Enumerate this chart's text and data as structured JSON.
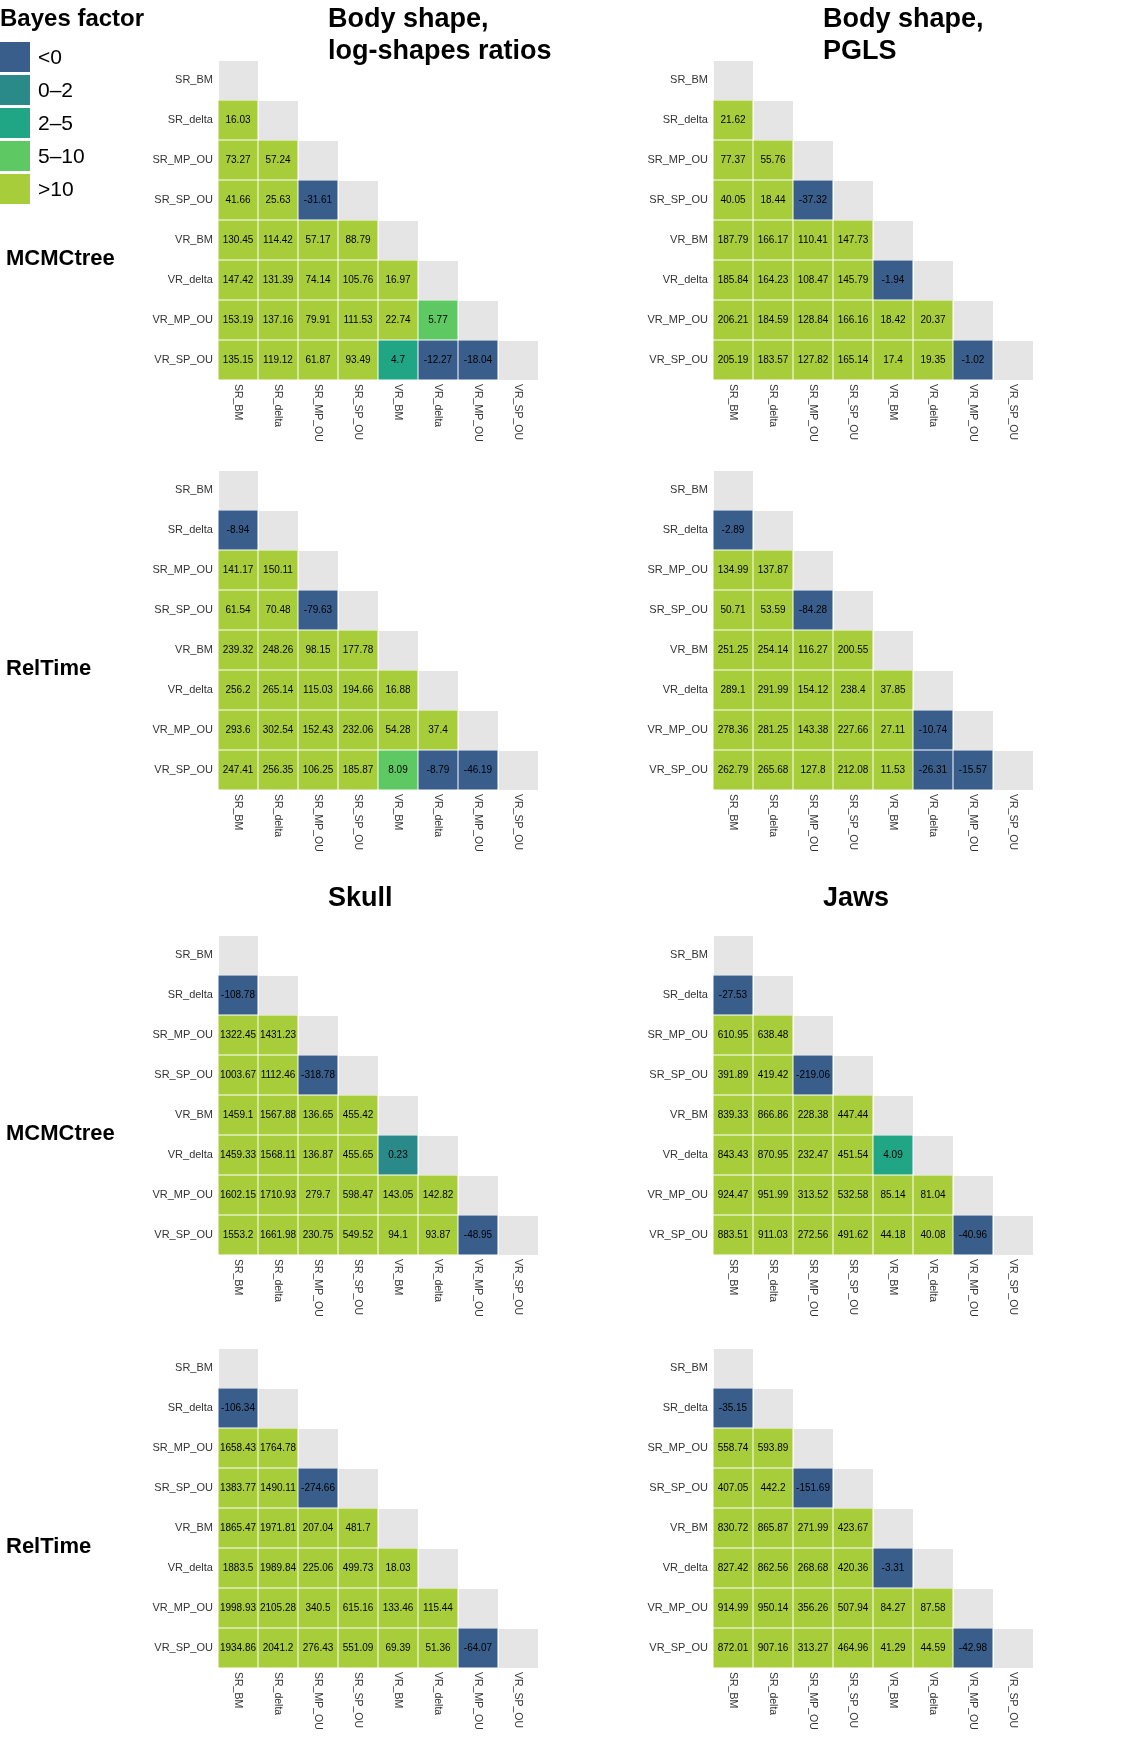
{
  "chart_data": [
    {
      "type": "heatmap",
      "title": "Body shape,\nlog-shapes ratios",
      "ylabel": "MCMCtree",
      "data_labels": true,
      "categories": [
        "SR_BM",
        "SR_delta",
        "SR_MP_OU",
        "SR_SP_OU",
        "VR_BM",
        "VR_delta",
        "VR_MP_OU",
        "VR_SP_OU"
      ],
      "y_categories": [
        "SR_BM",
        "SR_delta",
        "SR_MP_OU",
        "SR_SP_OU",
        "VR_BM",
        "VR_delta",
        "VR_MP_OU",
        "VR_SP_OU"
      ],
      "cells": [
        [
          null,
          null,
          null,
          null,
          null,
          null,
          null,
          null
        ],
        [
          16.03,
          null,
          null,
          null,
          null,
          null,
          null,
          null
        ],
        [
          73.27,
          57.24,
          null,
          null,
          null,
          null,
          null,
          null
        ],
        [
          41.66,
          25.63,
          -31.61,
          null,
          null,
          null,
          null,
          null
        ],
        [
          130.45,
          114.42,
          57.17,
          88.79,
          null,
          null,
          null,
          null
        ],
        [
          147.42,
          131.39,
          74.14,
          105.76,
          16.97,
          null,
          null,
          null
        ],
        [
          153.19,
          137.16,
          79.91,
          111.53,
          22.74,
          5.77,
          null,
          null
        ],
        [
          135.15,
          119.12,
          61.87,
          93.49,
          4.7,
          -12.27,
          -18.04,
          null
        ]
      ],
      "colors": [
        [
          "#e5e5e5",
          null,
          null,
          null,
          null,
          null,
          null,
          null
        ],
        [
          "#a8cd3a",
          "#e5e5e5",
          null,
          null,
          null,
          null,
          null,
          null
        ],
        [
          "#a8cd3a",
          "#a8cd3a",
          "#e5e5e5",
          null,
          null,
          null,
          null,
          null
        ],
        [
          "#a8cd3a",
          "#a8cd3a",
          "#3a5e8c",
          "#e5e5e5",
          null,
          null,
          null,
          null
        ],
        [
          "#a8cd3a",
          "#a8cd3a",
          "#a8cd3a",
          "#a8cd3a",
          "#e5e5e5",
          null,
          null,
          null
        ],
        [
          "#a8cd3a",
          "#a8cd3a",
          "#a8cd3a",
          "#a8cd3a",
          "#a8cd3a",
          "#e5e5e5",
          null,
          null
        ],
        [
          "#a8cd3a",
          "#a8cd3a",
          "#a8cd3a",
          "#a8cd3a",
          "#a8cd3a",
          "#5ec962",
          "#e5e5e5",
          null
        ],
        [
          "#a8cd3a",
          "#a8cd3a",
          "#a8cd3a",
          "#a8cd3a",
          "#21a685",
          "#3a5e8c",
          "#3a5e8c",
          "#e5e5e5"
        ]
      ]
    },
    {
      "type": "heatmap",
      "title": "Body shape,\nPGLS",
      "data_labels": true,
      "categories": [
        "SR_BM",
        "SR_delta",
        "SR_MP_OU",
        "SR_SP_OU",
        "VR_BM",
        "VR_delta",
        "VR_MP_OU",
        "VR_SP_OU"
      ],
      "y_categories": [
        "SR_BM",
        "SR_delta",
        "SR_MP_OU",
        "SR_SP_OU",
        "VR_BM",
        "VR_delta",
        "VR_MP_OU",
        "VR_SP_OU"
      ],
      "cells": [
        [
          null,
          null,
          null,
          null,
          null,
          null,
          null,
          null
        ],
        [
          21.62,
          null,
          null,
          null,
          null,
          null,
          null,
          null
        ],
        [
          77.37,
          55.76,
          null,
          null,
          null,
          null,
          null,
          null
        ],
        [
          40.05,
          18.44,
          -37.32,
          null,
          null,
          null,
          null,
          null
        ],
        [
          187.79,
          166.17,
          110.41,
          147.73,
          null,
          null,
          null,
          null
        ],
        [
          185.84,
          164.23,
          108.47,
          145.79,
          -1.94,
          null,
          null,
          null
        ],
        [
          206.21,
          184.59,
          128.84,
          166.16,
          18.42,
          20.37,
          null,
          null
        ],
        [
          205.19,
          183.57,
          127.82,
          165.14,
          17.4,
          19.35,
          -1.02,
          null
        ]
      ],
      "colors": [
        [
          "#e5e5e5",
          null,
          null,
          null,
          null,
          null,
          null,
          null
        ],
        [
          "#a8cd3a",
          "#e5e5e5",
          null,
          null,
          null,
          null,
          null,
          null
        ],
        [
          "#a8cd3a",
          "#a8cd3a",
          "#e5e5e5",
          null,
          null,
          null,
          null,
          null
        ],
        [
          "#a8cd3a",
          "#a8cd3a",
          "#3a5e8c",
          "#e5e5e5",
          null,
          null,
          null,
          null
        ],
        [
          "#a8cd3a",
          "#a8cd3a",
          "#a8cd3a",
          "#a8cd3a",
          "#e5e5e5",
          null,
          null,
          null
        ],
        [
          "#a8cd3a",
          "#a8cd3a",
          "#a8cd3a",
          "#a8cd3a",
          "#3a5e8c",
          "#e5e5e5",
          null,
          null
        ],
        [
          "#a8cd3a",
          "#a8cd3a",
          "#a8cd3a",
          "#a8cd3a",
          "#a8cd3a",
          "#a8cd3a",
          "#e5e5e5",
          null
        ],
        [
          "#a8cd3a",
          "#a8cd3a",
          "#a8cd3a",
          "#a8cd3a",
          "#a8cd3a",
          "#a8cd3a",
          "#3a5e8c",
          "#e5e5e5"
        ]
      ]
    },
    {
      "type": "heatmap",
      "ylabel": "RelTime",
      "data_labels": true,
      "categories": [
        "SR_BM",
        "SR_delta",
        "SR_MP_OU",
        "SR_SP_OU",
        "VR_BM",
        "VR_delta",
        "VR_MP_OU",
        "VR_SP_OU"
      ],
      "y_categories": [
        "SR_BM",
        "SR_delta",
        "SR_MP_OU",
        "SR_SP_OU",
        "VR_BM",
        "VR_delta",
        "VR_MP_OU",
        "VR_SP_OU"
      ],
      "cells": [
        [
          null,
          null,
          null,
          null,
          null,
          null,
          null,
          null
        ],
        [
          -8.94,
          null,
          null,
          null,
          null,
          null,
          null,
          null
        ],
        [
          141.17,
          150.11,
          null,
          null,
          null,
          null,
          null,
          null
        ],
        [
          61.54,
          70.48,
          -79.63,
          null,
          null,
          null,
          null,
          null
        ],
        [
          239.32,
          248.26,
          98.15,
          177.78,
          null,
          null,
          null,
          null
        ],
        [
          256.2,
          265.14,
          115.03,
          194.66,
          16.88,
          null,
          null,
          null
        ],
        [
          293.6,
          302.54,
          152.43,
          232.06,
          54.28,
          37.4,
          null,
          null
        ],
        [
          247.41,
          256.35,
          106.25,
          185.87,
          8.09,
          -8.79,
          -46.19,
          null
        ]
      ],
      "colors": [
        [
          "#e5e5e5",
          null,
          null,
          null,
          null,
          null,
          null,
          null
        ],
        [
          "#3a5e8c",
          "#e5e5e5",
          null,
          null,
          null,
          null,
          null,
          null
        ],
        [
          "#a8cd3a",
          "#a8cd3a",
          "#e5e5e5",
          null,
          null,
          null,
          null,
          null
        ],
        [
          "#a8cd3a",
          "#a8cd3a",
          "#3a5e8c",
          "#e5e5e5",
          null,
          null,
          null,
          null
        ],
        [
          "#a8cd3a",
          "#a8cd3a",
          "#a8cd3a",
          "#a8cd3a",
          "#e5e5e5",
          null,
          null,
          null
        ],
        [
          "#a8cd3a",
          "#a8cd3a",
          "#a8cd3a",
          "#a8cd3a",
          "#a8cd3a",
          "#e5e5e5",
          null,
          null
        ],
        [
          "#a8cd3a",
          "#a8cd3a",
          "#a8cd3a",
          "#a8cd3a",
          "#a8cd3a",
          "#a8cd3a",
          "#e5e5e5",
          null
        ],
        [
          "#a8cd3a",
          "#a8cd3a",
          "#a8cd3a",
          "#a8cd3a",
          "#5ec962",
          "#3a5e8c",
          "#3a5e8c",
          "#e5e5e5"
        ]
      ]
    },
    {
      "type": "heatmap",
      "data_labels": true,
      "categories": [
        "SR_BM",
        "SR_delta",
        "SR_MP_OU",
        "SR_SP_OU",
        "VR_BM",
        "VR_delta",
        "VR_MP_OU",
        "VR_SP_OU"
      ],
      "y_categories": [
        "SR_BM",
        "SR_delta",
        "SR_MP_OU",
        "SR_SP_OU",
        "VR_BM",
        "VR_delta",
        "VR_MP_OU",
        "VR_SP_OU"
      ],
      "cells": [
        [
          null,
          null,
          null,
          null,
          null,
          null,
          null,
          null
        ],
        [
          -2.89,
          null,
          null,
          null,
          null,
          null,
          null,
          null
        ],
        [
          134.99,
          137.87,
          null,
          null,
          null,
          null,
          null,
          null
        ],
        [
          50.71,
          53.59,
          -84.28,
          null,
          null,
          null,
          null,
          null
        ],
        [
          251.25,
          254.14,
          116.27,
          200.55,
          null,
          null,
          null,
          null
        ],
        [
          289.1,
          291.99,
          154.12,
          238.4,
          37.85,
          null,
          null,
          null
        ],
        [
          278.36,
          281.25,
          143.38,
          227.66,
          27.11,
          -10.74,
          null,
          null
        ],
        [
          262.79,
          265.68,
          127.8,
          212.08,
          11.53,
          -26.31,
          -15.57,
          null
        ]
      ],
      "colors": [
        [
          "#e5e5e5",
          null,
          null,
          null,
          null,
          null,
          null,
          null
        ],
        [
          "#3a5e8c",
          "#e5e5e5",
          null,
          null,
          null,
          null,
          null,
          null
        ],
        [
          "#a8cd3a",
          "#a8cd3a",
          "#e5e5e5",
          null,
          null,
          null,
          null,
          null
        ],
        [
          "#a8cd3a",
          "#a8cd3a",
          "#3a5e8c",
          "#e5e5e5",
          null,
          null,
          null,
          null
        ],
        [
          "#a8cd3a",
          "#a8cd3a",
          "#a8cd3a",
          "#a8cd3a",
          "#e5e5e5",
          null,
          null,
          null
        ],
        [
          "#a8cd3a",
          "#a8cd3a",
          "#a8cd3a",
          "#a8cd3a",
          "#a8cd3a",
          "#e5e5e5",
          null,
          null
        ],
        [
          "#a8cd3a",
          "#a8cd3a",
          "#a8cd3a",
          "#a8cd3a",
          "#a8cd3a",
          "#3a5e8c",
          "#e5e5e5",
          null
        ],
        [
          "#a8cd3a",
          "#a8cd3a",
          "#a8cd3a",
          "#a8cd3a",
          "#a8cd3a",
          "#3a5e8c",
          "#3a5e8c",
          "#e5e5e5"
        ]
      ]
    },
    {
      "type": "heatmap",
      "title": "Skull",
      "ylabel": "MCMCtree",
      "data_labels": true,
      "categories": [
        "SR_BM",
        "SR_delta",
        "SR_MP_OU",
        "SR_SP_OU",
        "VR_BM",
        "VR_delta",
        "VR_MP_OU",
        "VR_SP_OU"
      ],
      "y_categories": [
        "SR_BM",
        "SR_delta",
        "SR_MP_OU",
        "SR_SP_OU",
        "VR_BM",
        "VR_delta",
        "VR_MP_OU",
        "VR_SP_OU"
      ],
      "cells": [
        [
          null,
          null,
          null,
          null,
          null,
          null,
          null,
          null
        ],
        [
          -108.78,
          null,
          null,
          null,
          null,
          null,
          null,
          null
        ],
        [
          1322.45,
          1431.23,
          null,
          null,
          null,
          null,
          null,
          null
        ],
        [
          1003.67,
          1112.46,
          -318.78,
          null,
          null,
          null,
          null,
          null
        ],
        [
          1459.1,
          1567.88,
          136.65,
          455.42,
          null,
          null,
          null,
          null
        ],
        [
          1459.33,
          1568.11,
          136.87,
          455.65,
          0.23,
          null,
          null,
          null
        ],
        [
          1602.15,
          1710.93,
          279.7,
          598.47,
          143.05,
          142.82,
          null,
          null
        ],
        [
          1553.2,
          1661.98,
          230.75,
          549.52,
          94.1,
          93.87,
          -48.95,
          null
        ]
      ],
      "colors": [
        [
          "#e5e5e5",
          null,
          null,
          null,
          null,
          null,
          null,
          null
        ],
        [
          "#3a5e8c",
          "#e5e5e5",
          null,
          null,
          null,
          null,
          null,
          null
        ],
        [
          "#a8cd3a",
          "#a8cd3a",
          "#e5e5e5",
          null,
          null,
          null,
          null,
          null
        ],
        [
          "#a8cd3a",
          "#a8cd3a",
          "#3a5e8c",
          "#e5e5e5",
          null,
          null,
          null,
          null
        ],
        [
          "#a8cd3a",
          "#a8cd3a",
          "#a8cd3a",
          "#a8cd3a",
          "#e5e5e5",
          null,
          null,
          null
        ],
        [
          "#a8cd3a",
          "#a8cd3a",
          "#a8cd3a",
          "#a8cd3a",
          "#2a8a8a",
          "#e5e5e5",
          null,
          null
        ],
        [
          "#a8cd3a",
          "#a8cd3a",
          "#a8cd3a",
          "#a8cd3a",
          "#a8cd3a",
          "#a8cd3a",
          "#e5e5e5",
          null
        ],
        [
          "#a8cd3a",
          "#a8cd3a",
          "#a8cd3a",
          "#a8cd3a",
          "#a8cd3a",
          "#a8cd3a",
          "#3a5e8c",
          "#e5e5e5"
        ]
      ]
    },
    {
      "type": "heatmap",
      "title": "Jaws",
      "data_labels": true,
      "categories": [
        "SR_BM",
        "SR_delta",
        "SR_MP_OU",
        "SR_SP_OU",
        "VR_BM",
        "VR_delta",
        "VR_MP_OU",
        "VR_SP_OU"
      ],
      "y_categories": [
        "SR_BM",
        "SR_delta",
        "SR_MP_OU",
        "SR_SP_OU",
        "VR_BM",
        "VR_delta",
        "VR_MP_OU",
        "VR_SP_OU"
      ],
      "cells": [
        [
          null,
          null,
          null,
          null,
          null,
          null,
          null,
          null
        ],
        [
          -27.53,
          null,
          null,
          null,
          null,
          null,
          null,
          null
        ],
        [
          610.95,
          638.48,
          null,
          null,
          null,
          null,
          null,
          null
        ],
        [
          391.89,
          419.42,
          -219.06,
          null,
          null,
          null,
          null,
          null
        ],
        [
          839.33,
          866.86,
          228.38,
          447.44,
          null,
          null,
          null,
          null
        ],
        [
          843.43,
          870.95,
          232.47,
          451.54,
          4.09,
          null,
          null,
          null
        ],
        [
          924.47,
          951.99,
          313.52,
          532.58,
          85.14,
          81.04,
          null,
          null
        ],
        [
          883.51,
          911.03,
          272.56,
          491.62,
          44.18,
          40.08,
          -40.96,
          null
        ]
      ],
      "colors": [
        [
          "#e5e5e5",
          null,
          null,
          null,
          null,
          null,
          null,
          null
        ],
        [
          "#3a5e8c",
          "#e5e5e5",
          null,
          null,
          null,
          null,
          null,
          null
        ],
        [
          "#a8cd3a",
          "#a8cd3a",
          "#e5e5e5",
          null,
          null,
          null,
          null,
          null
        ],
        [
          "#a8cd3a",
          "#a8cd3a",
          "#3a5e8c",
          "#e5e5e5",
          null,
          null,
          null,
          null
        ],
        [
          "#a8cd3a",
          "#a8cd3a",
          "#a8cd3a",
          "#a8cd3a",
          "#e5e5e5",
          null,
          null,
          null
        ],
        [
          "#a8cd3a",
          "#a8cd3a",
          "#a8cd3a",
          "#a8cd3a",
          "#21a685",
          "#e5e5e5",
          null,
          null
        ],
        [
          "#a8cd3a",
          "#a8cd3a",
          "#a8cd3a",
          "#a8cd3a",
          "#a8cd3a",
          "#a8cd3a",
          "#e5e5e5",
          null
        ],
        [
          "#a8cd3a",
          "#a8cd3a",
          "#a8cd3a",
          "#a8cd3a",
          "#a8cd3a",
          "#a8cd3a",
          "#3a5e8c",
          "#e5e5e5"
        ]
      ]
    },
    {
      "type": "heatmap",
      "ylabel": "RelTime",
      "data_labels": true,
      "categories": [
        "SR_BM",
        "SR_delta",
        "SR_MP_OU",
        "SR_SP_OU",
        "VR_BM",
        "VR_delta",
        "VR_MP_OU",
        "VR_SP_OU"
      ],
      "y_categories": [
        "SR_BM",
        "SR_delta",
        "SR_MP_OU",
        "SR_SP_OU",
        "VR_BM",
        "VR_delta",
        "VR_MP_OU",
        "VR_SP_OU"
      ],
      "cells": [
        [
          null,
          null,
          null,
          null,
          null,
          null,
          null,
          null
        ],
        [
          -106.34,
          null,
          null,
          null,
          null,
          null,
          null,
          null
        ],
        [
          1658.43,
          1764.78,
          null,
          null,
          null,
          null,
          null,
          null
        ],
        [
          1383.77,
          1490.11,
          -274.66,
          null,
          null,
          null,
          null,
          null
        ],
        [
          1865.47,
          1971.81,
          207.04,
          481.7,
          null,
          null,
          null,
          null
        ],
        [
          1883.5,
          1989.84,
          225.06,
          499.73,
          18.03,
          null,
          null,
          null
        ],
        [
          1998.93,
          2105.28,
          340.5,
          615.16,
          133.46,
          115.44,
          null,
          null
        ],
        [
          1934.86,
          2041.2,
          276.43,
          551.09,
          69.39,
          51.36,
          -64.07,
          null
        ]
      ],
      "colors": [
        [
          "#e5e5e5",
          null,
          null,
          null,
          null,
          null,
          null,
          null
        ],
        [
          "#3a5e8c",
          "#e5e5e5",
          null,
          null,
          null,
          null,
          null,
          null
        ],
        [
          "#a8cd3a",
          "#a8cd3a",
          "#e5e5e5",
          null,
          null,
          null,
          null,
          null
        ],
        [
          "#a8cd3a",
          "#a8cd3a",
          "#3a5e8c",
          "#e5e5e5",
          null,
          null,
          null,
          null
        ],
        [
          "#a8cd3a",
          "#a8cd3a",
          "#a8cd3a",
          "#a8cd3a",
          "#e5e5e5",
          null,
          null,
          null
        ],
        [
          "#a8cd3a",
          "#a8cd3a",
          "#a8cd3a",
          "#a8cd3a",
          "#a8cd3a",
          "#e5e5e5",
          null,
          null
        ],
        [
          "#a8cd3a",
          "#a8cd3a",
          "#a8cd3a",
          "#a8cd3a",
          "#a8cd3a",
          "#a8cd3a",
          "#e5e5e5",
          null
        ],
        [
          "#a8cd3a",
          "#a8cd3a",
          "#a8cd3a",
          "#a8cd3a",
          "#a8cd3a",
          "#a8cd3a",
          "#3a5e8c",
          "#e5e5e5"
        ]
      ]
    },
    {
      "type": "heatmap",
      "data_labels": true,
      "categories": [
        "SR_BM",
        "SR_delta",
        "SR_MP_OU",
        "SR_SP_OU",
        "VR_BM",
        "VR_delta",
        "VR_MP_OU",
        "VR_SP_OU"
      ],
      "y_categories": [
        "SR_BM",
        "SR_delta",
        "SR_MP_OU",
        "SR_SP_OU",
        "VR_BM",
        "VR_delta",
        "VR_MP_OU",
        "VR_SP_OU"
      ],
      "cells": [
        [
          null,
          null,
          null,
          null,
          null,
          null,
          null,
          null
        ],
        [
          -35.15,
          null,
          null,
          null,
          null,
          null,
          null,
          null
        ],
        [
          558.74,
          593.89,
          null,
          null,
          null,
          null,
          null,
          null
        ],
        [
          407.05,
          442.2,
          -151.69,
          null,
          null,
          null,
          null,
          null
        ],
        [
          830.72,
          865.87,
          271.99,
          423.67,
          null,
          null,
          null,
          null
        ],
        [
          827.42,
          862.56,
          268.68,
          420.36,
          -3.31,
          null,
          null,
          null
        ],
        [
          914.99,
          950.14,
          356.26,
          507.94,
          84.27,
          87.58,
          null,
          null
        ],
        [
          872.01,
          907.16,
          313.27,
          464.96,
          41.29,
          44.59,
          -42.98,
          null
        ]
      ],
      "colors": [
        [
          "#e5e5e5",
          null,
          null,
          null,
          null,
          null,
          null,
          null
        ],
        [
          "#3a5e8c",
          "#e5e5e5",
          null,
          null,
          null,
          null,
          null,
          null
        ],
        [
          "#a8cd3a",
          "#a8cd3a",
          "#e5e5e5",
          null,
          null,
          null,
          null,
          null
        ],
        [
          "#a8cd3a",
          "#a8cd3a",
          "#3a5e8c",
          "#e5e5e5",
          null,
          null,
          null,
          null
        ],
        [
          "#a8cd3a",
          "#a8cd3a",
          "#a8cd3a",
          "#a8cd3a",
          "#e5e5e5",
          null,
          null,
          null
        ],
        [
          "#a8cd3a",
          "#a8cd3a",
          "#a8cd3a",
          "#a8cd3a",
          "#3a5e8c",
          "#e5e5e5",
          null,
          null
        ],
        [
          "#a8cd3a",
          "#a8cd3a",
          "#a8cd3a",
          "#a8cd3a",
          "#a8cd3a",
          "#a8cd3a",
          "#e5e5e5",
          null
        ],
        [
          "#a8cd3a",
          "#a8cd3a",
          "#a8cd3a",
          "#a8cd3a",
          "#a8cd3a",
          "#a8cd3a",
          "#3a5e8c",
          "#e5e5e5"
        ]
      ]
    },
    {
      "type": "other",
      "title": "Bayes factor",
      "categories": [
        "<0",
        "0–2",
        "2–5",
        "5–10",
        ">10"
      ],
      "colors": [
        "#3a5e8c",
        "#2a8a8a",
        "#21a685",
        "#5ec962",
        "#a8cd3a"
      ]
    }
  ]
}
